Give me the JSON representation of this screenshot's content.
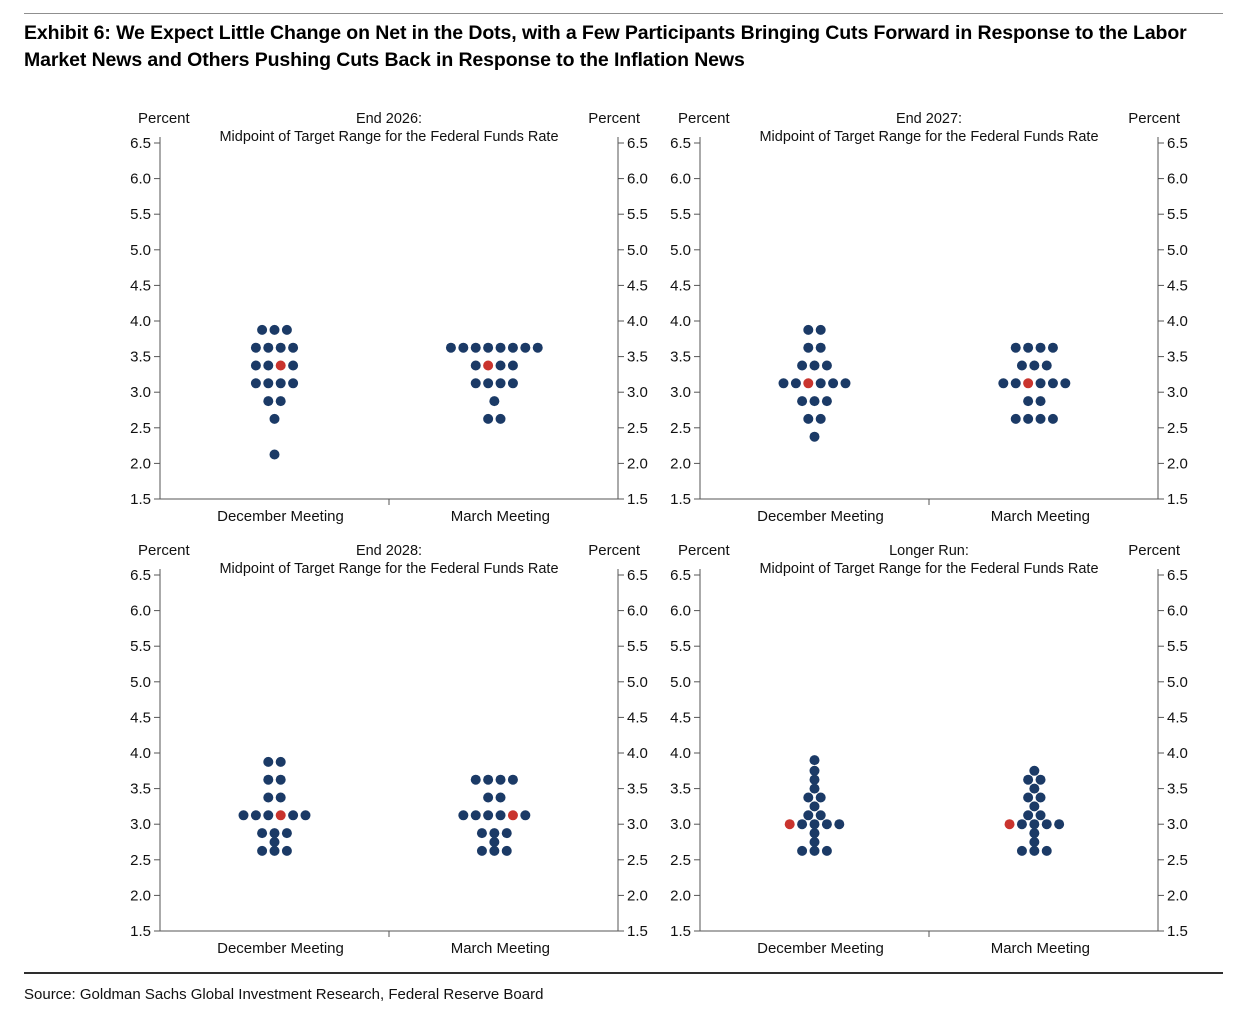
{
  "header": {
    "title": "Exhibit 6: We Expect Little Change on Net in the Dots, with a Few Participants Bringing Cuts Forward in Response to the Labor Market News and Others Pushing Cuts Back in Response to the Inflation News"
  },
  "footer": {
    "source": "Source: Goldman Sachs Global Investment Research, Federal Reserve Board"
  },
  "colors": {
    "dot_navy": "#1b3a66",
    "dot_red": "#c9342e",
    "axis": "#565656"
  },
  "chart_data": [
    {
      "type": "scatter",
      "variant": "fomc_dot_plot",
      "title_line1": "End 2026:",
      "title_line2": "Midpoint of Target Range for the Federal Funds Rate",
      "ylabel": "Percent",
      "ylim": [
        1.5,
        6.5
      ],
      "ytick_step": 0.5,
      "grid": false,
      "categories": [
        "December Meeting",
        "March Meeting"
      ],
      "median_rate": 3.375,
      "series": [
        {
          "name": "December Meeting",
          "dots": [
            {
              "rate": 3.875,
              "count": 3
            },
            {
              "rate": 3.625,
              "count": 4
            },
            {
              "rate": 3.375,
              "count": 4,
              "red_index": 3
            },
            {
              "rate": 3.125,
              "count": 4
            },
            {
              "rate": 2.875,
              "count": 2
            },
            {
              "rate": 2.625,
              "count": 1
            },
            {
              "rate": 2.125,
              "count": 1
            }
          ]
        },
        {
          "name": "March Meeting",
          "dots": [
            {
              "rate": 3.625,
              "count": 8
            },
            {
              "rate": 3.375,
              "count": 4,
              "red_index": 2
            },
            {
              "rate": 3.125,
              "count": 4
            },
            {
              "rate": 2.875,
              "count": 1
            },
            {
              "rate": 2.625,
              "count": 2
            }
          ]
        }
      ]
    },
    {
      "type": "scatter",
      "variant": "fomc_dot_plot",
      "title_line1": "End 2027:",
      "title_line2": "Midpoint of Target Range for the Federal Funds Rate",
      "ylabel": "Percent",
      "ylim": [
        1.5,
        6.5
      ],
      "ytick_step": 0.5,
      "grid": false,
      "categories": [
        "December Meeting",
        "March Meeting"
      ],
      "median_rate": 3.125,
      "series": [
        {
          "name": "December Meeting",
          "dots": [
            {
              "rate": 3.875,
              "count": 2
            },
            {
              "rate": 3.625,
              "count": 2
            },
            {
              "rate": 3.375,
              "count": 3
            },
            {
              "rate": 3.125,
              "count": 6,
              "red_index": 3
            },
            {
              "rate": 2.875,
              "count": 3
            },
            {
              "rate": 2.625,
              "count": 2
            },
            {
              "rate": 2.375,
              "count": 1
            }
          ]
        },
        {
          "name": "March Meeting",
          "dots": [
            {
              "rate": 3.625,
              "count": 4
            },
            {
              "rate": 3.375,
              "count": 3
            },
            {
              "rate": 3.125,
              "count": 6,
              "red_index": 3
            },
            {
              "rate": 2.875,
              "count": 2
            },
            {
              "rate": 2.625,
              "count": 4
            }
          ]
        }
      ]
    },
    {
      "type": "scatter",
      "variant": "fomc_dot_plot",
      "title_line1": "End 2028:",
      "title_line2": "Midpoint of Target Range for the Federal Funds Rate",
      "ylabel": "Percent",
      "ylim": [
        1.5,
        6.5
      ],
      "ytick_step": 0.5,
      "grid": false,
      "categories": [
        "December Meeting",
        "March Meeting"
      ],
      "median_rate": 3.125,
      "series": [
        {
          "name": "December Meeting",
          "dots": [
            {
              "rate": 3.875,
              "count": 2
            },
            {
              "rate": 3.625,
              "count": 2
            },
            {
              "rate": 3.375,
              "count": 2
            },
            {
              "rate": 3.125,
              "count": 6,
              "red_index": 4
            },
            {
              "rate": 2.875,
              "count": 3
            },
            {
              "rate": 2.75,
              "count": 1
            },
            {
              "rate": 2.625,
              "count": 3
            }
          ]
        },
        {
          "name": "March Meeting",
          "dots": [
            {
              "rate": 3.625,
              "count": 4
            },
            {
              "rate": 3.375,
              "count": 2
            },
            {
              "rate": 3.125,
              "count": 6,
              "red_index": 5
            },
            {
              "rate": 2.875,
              "count": 3
            },
            {
              "rate": 2.75,
              "count": 1
            },
            {
              "rate": 2.625,
              "count": 3
            }
          ]
        }
      ]
    },
    {
      "type": "scatter",
      "variant": "fomc_dot_plot",
      "title_line1": "Longer Run:",
      "title_line2": "Midpoint of Target Range for the Federal Funds Rate",
      "ylabel": "Percent",
      "ylim": [
        1.5,
        6.5
      ],
      "ytick_step": 0.5,
      "grid": false,
      "categories": [
        "December Meeting",
        "March Meeting"
      ],
      "median_rate": 3.0,
      "series": [
        {
          "name": "December Meeting",
          "dots": [
            {
              "rate": 3.9,
              "count": 1
            },
            {
              "rate": 3.75,
              "count": 1
            },
            {
              "rate": 3.625,
              "count": 1
            },
            {
              "rate": 3.5,
              "count": 1
            },
            {
              "rate": 3.375,
              "count": 2
            },
            {
              "rate": 3.25,
              "count": 1
            },
            {
              "rate": 3.125,
              "count": 2
            },
            {
              "rate": 3.0,
              "count": 5,
              "red_index": 1
            },
            {
              "rate": 2.875,
              "count": 1
            },
            {
              "rate": 2.75,
              "count": 1
            },
            {
              "rate": 2.625,
              "count": 3
            }
          ]
        },
        {
          "name": "March Meeting",
          "dots": [
            {
              "rate": 3.75,
              "count": 1
            },
            {
              "rate": 3.625,
              "count": 2
            },
            {
              "rate": 3.5,
              "count": 1
            },
            {
              "rate": 3.375,
              "count": 2
            },
            {
              "rate": 3.25,
              "count": 1
            },
            {
              "rate": 3.125,
              "count": 2
            },
            {
              "rate": 3.0,
              "count": 5,
              "red_index": 1
            },
            {
              "rate": 2.875,
              "count": 1
            },
            {
              "rate": 2.75,
              "count": 1
            },
            {
              "rate": 2.625,
              "count": 3
            }
          ]
        }
      ]
    }
  ]
}
